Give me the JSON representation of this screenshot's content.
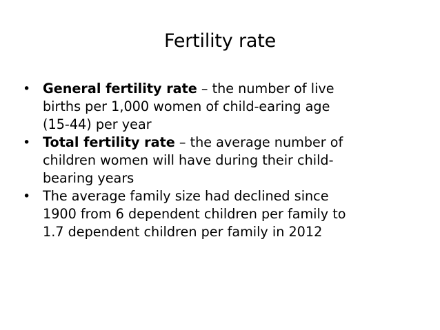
{
  "slide": {
    "title": "Fertility rate",
    "bullets": [
      {
        "term": "General fertility rate",
        "lines": [
          " – the number of live",
          "births per 1,000 women of child-earing age",
          "(15-44) per year"
        ]
      },
      {
        "term": "Total fertility rate",
        "lines": [
          " – the average number of",
          "children women will have during their child-",
          "bearing years"
        ]
      },
      {
        "term": "",
        "lines": [
          "The average family size had declined since",
          "1900 from 6 dependent children per family to",
          "1.7 dependent children per family in 2012"
        ]
      }
    ],
    "bullet_symbol": "•"
  }
}
